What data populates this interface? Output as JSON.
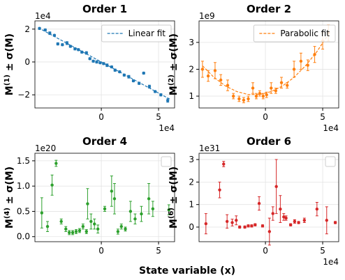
{
  "supxlabel": "State variable (x)",
  "chart_data": [
    {
      "type": "scatter",
      "title": "Order 1",
      "ylabel": [
        "M",
        "(1)",
        " ± σ(M)"
      ],
      "y_offset": "1e4",
      "x_offset": "1e4",
      "xlim": [
        -58000,
        64000
      ],
      "xticks": [
        0,
        {
          "value": 50000,
          "label": "5"
        }
      ],
      "ylim": [
        -28000,
        25000
      ],
      "yticks": [
        {
          "value": -20000,
          "label": "−2"
        },
        0,
        {
          "value": 20000,
          "label": "2"
        }
      ],
      "grid": true,
      "legend": "upper right",
      "series": [
        {
          "type": "errorbar",
          "color": "#1f77b4",
          "x": [
            -54000,
            -49000,
            -45000,
            -41000,
            -38000,
            -34000,
            -30000,
            -27000,
            -23000,
            -20000,
            -17000,
            -13000,
            -10000,
            -7000,
            -4000,
            -1000,
            2000,
            5000,
            9000,
            12000,
            16000,
            20000,
            24000,
            28000,
            33000,
            37000,
            42000,
            47000,
            52000,
            58000
          ],
          "values": [
            20400,
            19500,
            17500,
            16200,
            11000,
            10500,
            11500,
            9500,
            8000,
            7500,
            6000,
            5500,
            2000,
            500,
            0,
            -500,
            -1000,
            -2000,
            -3000,
            -5000,
            -6000,
            -8000,
            -9000,
            -11500,
            -13000,
            -6800,
            -15000,
            -18000,
            -20000,
            -23500
          ],
          "errors": [
            600,
            600,
            800,
            600,
            700,
            600,
            900,
            600,
            700,
            600,
            600,
            800,
            600,
            600,
            700,
            600,
            600,
            800,
            600,
            700,
            600,
            600,
            800,
            600,
            700,
            600,
            900,
            600,
            700,
            1000
          ]
        },
        {
          "type": "line",
          "name": "Linear fit",
          "color": "#1f77b4",
          "dashed": true,
          "x": [
            -55000,
            60000
          ],
          "values": [
            20800,
            -22700
          ]
        }
      ]
    },
    {
      "type": "scatter",
      "title": "Order 2",
      "ylabel": [
        "M",
        "(2)",
        " ± σ(M)"
      ],
      "y_offset": "1e9",
      "x_offset": "1e4",
      "xlim": [
        -58000,
        64000
      ],
      "xticks": [
        0,
        {
          "value": 50000,
          "label": "5"
        }
      ],
      "ylim": [
        560000000,
        3800000000
      ],
      "yticks": [
        {
          "value": 1000000000,
          "label": "1"
        },
        {
          "value": 2000000000,
          "label": "2"
        },
        {
          "value": 3000000000,
          "label": "3"
        }
      ],
      "grid": true,
      "legend": "upper right",
      "series": [
        {
          "type": "errorbar",
          "color": "#ff7f0e",
          "x": [
            -55000,
            -50000,
            -44000,
            -39000,
            -33000,
            -28000,
            -23000,
            -19000,
            -15000,
            -11000,
            -8000,
            -5000,
            -2000,
            1000,
            5000,
            9000,
            14000,
            19000,
            25000,
            31000,
            37000,
            43000,
            50000,
            55000
          ],
          "values": [
            2000000000.0,
            1750000000.0,
            1950000000.0,
            1600000000.0,
            1400000000.0,
            1000000000.0,
            900000000.0,
            850000000.0,
            900000000.0,
            1300000000.0,
            1000000000.0,
            1100000000.0,
            1000000000.0,
            1050000000.0,
            1300000000.0,
            1200000000.0,
            1500000000.0,
            1400000000.0,
            2000000000.0,
            2300000000.0,
            2150000000.0,
            2550000000.0,
            3050000000.0,
            3350000000.0
          ],
          "errors": [
            300000000.0,
            200000000.0,
            300000000.0,
            200000000.0,
            200000000.0,
            100000000.0,
            100000000.0,
            100000000.0,
            100000000.0,
            200000000.0,
            100000000.0,
            100000000.0,
            100000000.0,
            100000000.0,
            200000000.0,
            100000000.0,
            200000000.0,
            100000000.0,
            300000000.0,
            300000000.0,
            200000000.0,
            300000000.0,
            300000000.0,
            300000000.0
          ]
        },
        {
          "type": "line",
          "name": "Parabolic fit",
          "color": "#ff7f0e",
          "dashed": true,
          "x": [
            -55000,
            -45000,
            -35000,
            -25000,
            -15000,
            -5000,
            5000,
            15000,
            25000,
            35000,
            45000,
            55000
          ],
          "values": [
            2130000000.0,
            1700000000.0,
            1380000000.0,
            1170000000.0,
            1060000000.0,
            1060000000.0,
            1170000000.0,
            1380000000.0,
            1700000000.0,
            2130000000.0,
            2660000000.0,
            3300000000.0
          ]
        }
      ]
    },
    {
      "type": "scatter",
      "title": "Order 4",
      "ylabel": [
        "M",
        "(4)",
        " ± σ(M)"
      ],
      "y_offset": "1e20",
      "xlim": [
        -58000,
        64000
      ],
      "xticks": [
        0,
        {
          "value": 50000,
          "label": "5"
        }
      ],
      "ylim": [
        -1e+19,
        1.65e+20
      ],
      "yticks": [
        {
          "value": 0,
          "label": "0.0"
        },
        {
          "value": 5e+19,
          "label": "0.5"
        },
        {
          "value": 1e+20,
          "label": "1.0"
        },
        {
          "value": 1.5e+20,
          "label": "1.5"
        }
      ],
      "grid": true,
      "legend": "upper right",
      "series": [
        {
          "type": "errorbar",
          "color": "#2ca02c",
          "x": [
            -52000,
            -47000,
            -43000,
            -39500,
            -35000,
            -31000,
            -28000,
            -25000,
            -22000,
            -19000,
            -16000,
            -13000,
            -12000,
            -9000,
            -6000,
            -3000,
            3000,
            9000,
            11500,
            14500,
            17500,
            21000,
            25500,
            29500,
            35000,
            41500,
            45000,
            59000
          ],
          "values": [
            4.7e+19,
            2e+19,
            1.02e+20,
            1.45e+20,
            3e+19,
            1.5e+19,
            8e+18,
            8e+18,
            1e+19,
            1.2e+19,
            2e+19,
            1e+19,
            6.5e+19,
            3e+19,
            2.5e+19,
            1.5e+19,
            5.5e+19,
            9e+19,
            7.5e+19,
            1e+19,
            2e+19,
            1.5e+19,
            5e+19,
            3.5e+19,
            4.5e+19,
            7.5e+19,
            5.5e+19,
            5.3e+19
          ],
          "errors": [
            3e+19,
            1e+19,
            2e+19,
            6e+18,
            5e+18,
            5e+18,
            4e+18,
            4e+18,
            4e+18,
            4e+18,
            5e+18,
            4e+18,
            3e+19,
            1.5e+19,
            1e+19,
            8e+18,
            5e+18,
            3e+19,
            3e+19,
            5e+18,
            5e+18,
            4e+18,
            2e+19,
            1e+19,
            1.5e+19,
            3e+19,
            1.5e+19,
            1e+19
          ]
        }
      ]
    },
    {
      "type": "scatter",
      "title": "Order 6",
      "ylabel": [
        "M",
        "(6)",
        " ± σ(M)"
      ],
      "y_offset": "1e31",
      "x_offset": "1e4",
      "xlim": [
        -58000,
        64000
      ],
      "xticks": [
        0,
        {
          "value": 50000,
          "label": "5"
        }
      ],
      "ylim": [
        -6.5e+30,
        3.28e+31
      ],
      "yticks": [
        0,
        {
          "value": 1e+31,
          "label": "1"
        },
        {
          "value": 2e+31,
          "label": "2"
        },
        {
          "value": 3e+31,
          "label": "3"
        }
      ],
      "grid": true,
      "legend": "upper right",
      "series": [
        {
          "type": "errorbar",
          "color": "#d62728",
          "x": [
            -52000,
            -40000,
            -36500,
            -33500,
            -29000,
            -25500,
            -22500,
            -18000,
            -15000,
            -12000,
            -9000,
            -5500,
            -2500,
            3500,
            6500,
            9500,
            13000,
            16000,
            18000,
            22000,
            25500,
            29000,
            34000,
            45000,
            53500,
            61000
          ],
          "values": [
            1.5e+30,
            1.65e+31,
            2.8e+31,
            2.5e+30,
            2e+30,
            3e+30,
            0,
            0,
            5e+29,
            5e+29,
            1e+30,
            1.05e+31,
            5e+29,
            -2e+30,
            6e+30,
            1.8e+31,
            8e+30,
            4.5e+30,
            4e+30,
            1e+30,
            2.5e+30,
            2e+30,
            3e+30,
            8e+30,
            3e+30,
            2e+30
          ],
          "errors": [
            4.5e+30,
            3.5e+30,
            1.2e+30,
            3e+30,
            1.5e+30,
            2e+30,
            5e+29,
            5e+29,
            5e+29,
            5e+29,
            5e+29,
            3e+30,
            5e+29,
            6e+30,
            3e+30,
            1.2e+31,
            6e+30,
            1.5e+30,
            1e+30,
            5e+29,
            8e+29,
            5e+29,
            1e+30,
            3e+30,
            6e+30,
            5e+29
          ]
        }
      ]
    }
  ]
}
